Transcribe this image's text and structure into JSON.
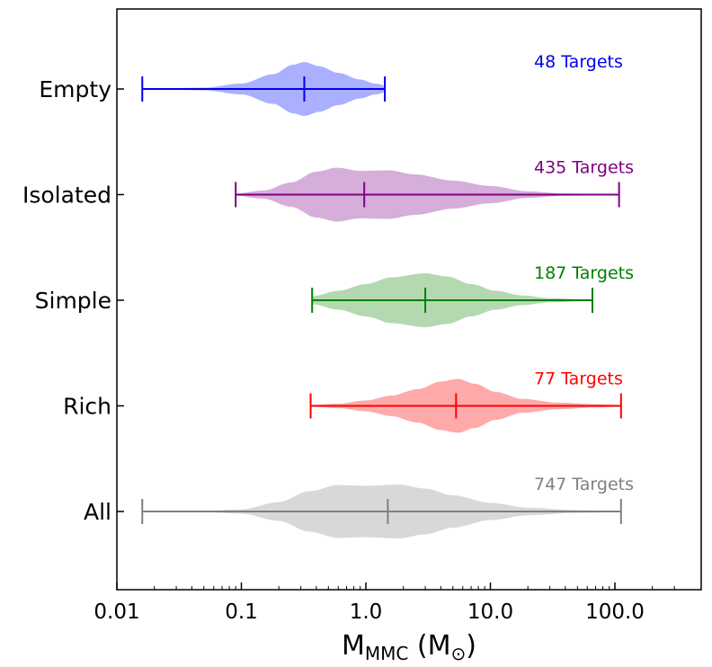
{
  "chart_data": {
    "type": "violin",
    "orientation": "horizontal",
    "x_scale": "log",
    "xlim": [
      0.01,
      320
    ],
    "xticks": [
      {
        "value": 0.01,
        "label": "0.01"
      },
      {
        "value": 0.1,
        "label": "0.1"
      },
      {
        "value": 1.0,
        "label": "1.0"
      },
      {
        "value": 10.0,
        "label": "10.0"
      },
      {
        "value": 100.0,
        "label": "100.0"
      }
    ],
    "xlabel": {
      "main": "M",
      "sub": "MMC",
      "unit_open": " (M",
      "unit_sub": "⊙",
      "unit_close": ")"
    },
    "ylabel": "",
    "grid": false,
    "series": [
      {
        "name": "Empty",
        "count_label": "48 Targets",
        "color": "#0000ee",
        "fill": "#aab0ff",
        "min": 0.016,
        "median": 0.32,
        "max": 1.42,
        "density": [
          [
            0.016,
            0.0
          ],
          [
            0.05,
            0.05
          ],
          [
            0.1,
            0.2
          ],
          [
            0.18,
            0.55
          ],
          [
            0.26,
            0.9
          ],
          [
            0.32,
            1.0
          ],
          [
            0.42,
            0.85
          ],
          [
            0.6,
            0.6
          ],
          [
            0.9,
            0.35
          ],
          [
            1.2,
            0.2
          ],
          [
            1.42,
            0.14
          ]
        ]
      },
      {
        "name": "Isolated",
        "count_label": "435 Targets",
        "color": "#800080",
        "fill": "#d5aed9",
        "min": 0.09,
        "median": 0.97,
        "max": 108,
        "density": [
          [
            0.09,
            0.04
          ],
          [
            0.15,
            0.15
          ],
          [
            0.25,
            0.45
          ],
          [
            0.4,
            0.85
          ],
          [
            0.58,
            1.0
          ],
          [
            0.9,
            0.88
          ],
          [
            1.5,
            0.9
          ],
          [
            2.5,
            0.75
          ],
          [
            5,
            0.52
          ],
          [
            10,
            0.32
          ],
          [
            20,
            0.12
          ],
          [
            40,
            0.04
          ],
          [
            108,
            0.01
          ]
        ]
      },
      {
        "name": "Simple",
        "count_label": "187 Targets",
        "color": "#008000",
        "fill": "#b4d9b0",
        "min": 0.37,
        "median": 3.0,
        "max": 66,
        "density": [
          [
            0.37,
            0.15
          ],
          [
            0.6,
            0.35
          ],
          [
            1.0,
            0.6
          ],
          [
            1.6,
            0.85
          ],
          [
            3.0,
            1.0
          ],
          [
            4.5,
            0.88
          ],
          [
            7,
            0.6
          ],
          [
            11,
            0.35
          ],
          [
            18,
            0.18
          ],
          [
            30,
            0.08
          ],
          [
            66,
            0.02
          ]
        ]
      },
      {
        "name": "Rich",
        "count_label": "77 Targets",
        "color": "#ff0000",
        "fill": "#ffaaaa",
        "min": 0.36,
        "median": 5.3,
        "max": 112,
        "density": [
          [
            0.36,
            0.03
          ],
          [
            0.6,
            0.08
          ],
          [
            1.0,
            0.2
          ],
          [
            1.6,
            0.38
          ],
          [
            2.6,
            0.62
          ],
          [
            4.0,
            0.9
          ],
          [
            5.5,
            1.0
          ],
          [
            7.5,
            0.82
          ],
          [
            11,
            0.52
          ],
          [
            18,
            0.26
          ],
          [
            35,
            0.12
          ],
          [
            70,
            0.06
          ],
          [
            112,
            0.03
          ]
        ]
      },
      {
        "name": "All",
        "count_label": "747 Targets",
        "color": "#808080",
        "fill": "#d8d8d8",
        "min": 0.016,
        "median": 1.5,
        "max": 112,
        "density": [
          [
            0.016,
            0.0
          ],
          [
            0.05,
            0.02
          ],
          [
            0.1,
            0.08
          ],
          [
            0.2,
            0.35
          ],
          [
            0.35,
            0.75
          ],
          [
            0.6,
            0.98
          ],
          [
            1.0,
            0.95
          ],
          [
            1.8,
            1.0
          ],
          [
            3.0,
            0.85
          ],
          [
            5.0,
            0.6
          ],
          [
            10,
            0.32
          ],
          [
            20,
            0.14
          ],
          [
            50,
            0.05
          ],
          [
            112,
            0.02
          ]
        ]
      }
    ]
  }
}
